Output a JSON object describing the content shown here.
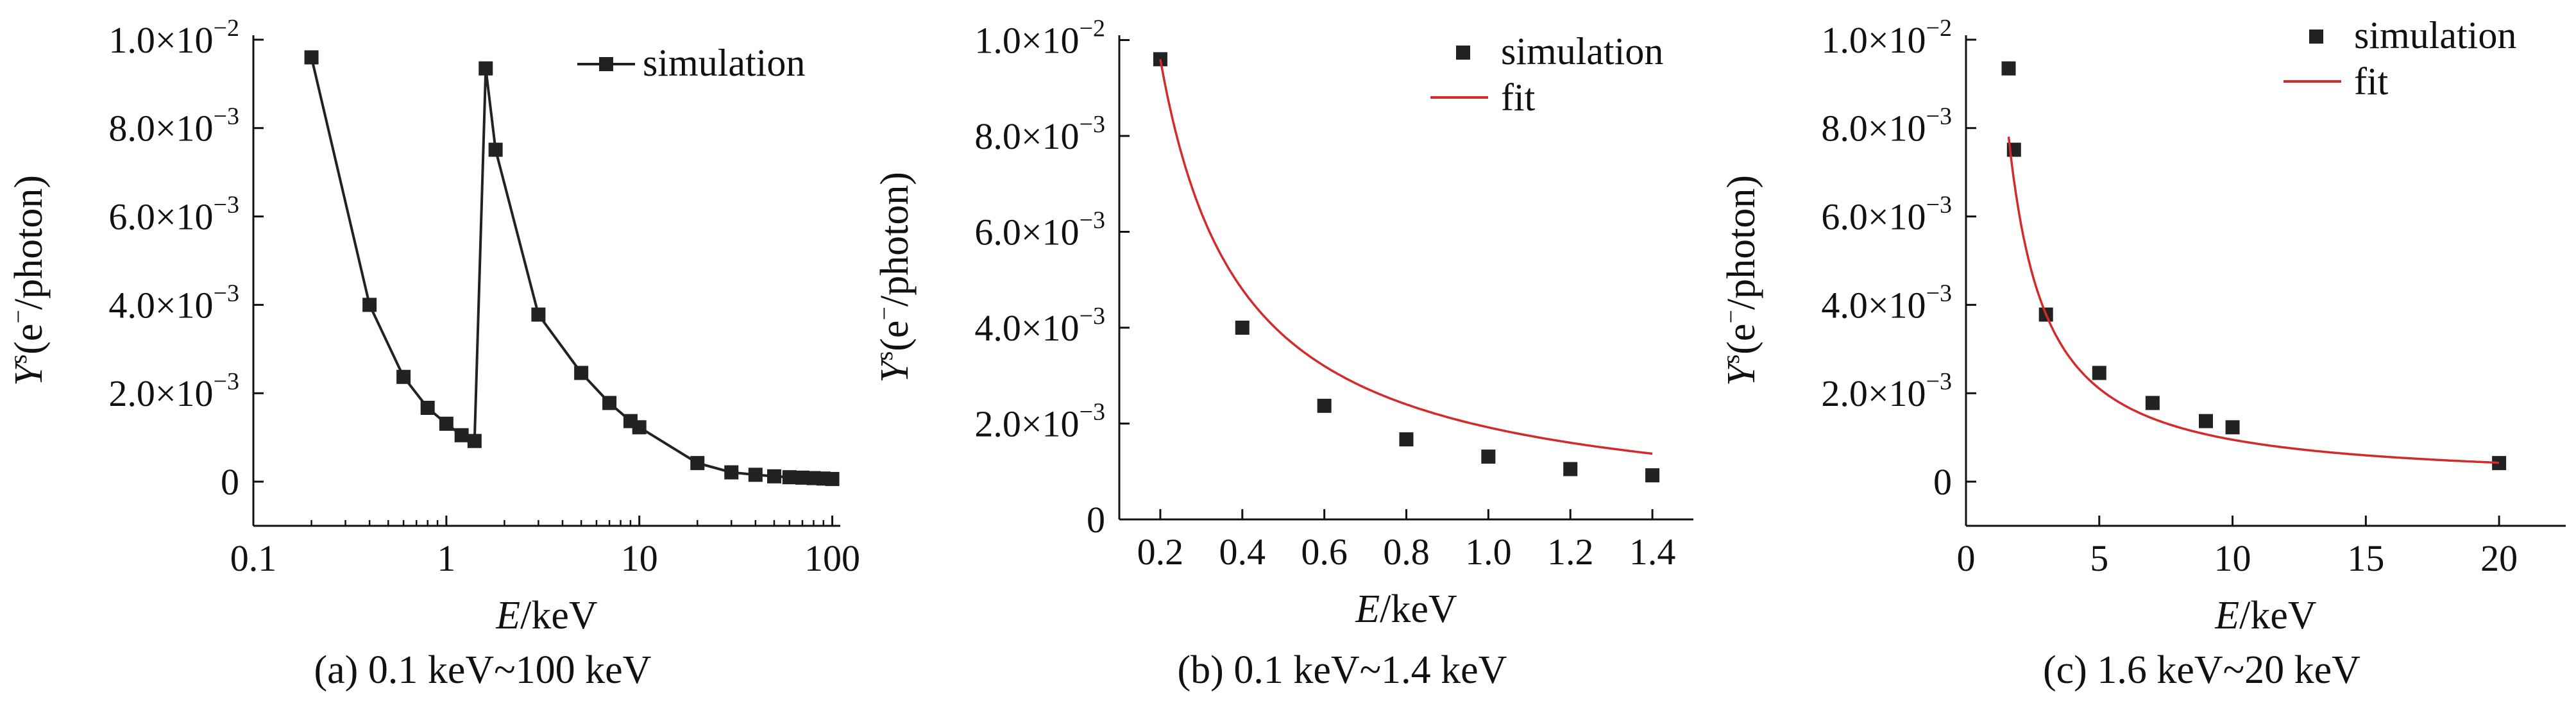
{
  "chart_data": [
    {
      "type": "line",
      "caption": "(a) 0.1 keV~100 keV",
      "xlabel_var": "E",
      "xlabel_unit": "/keV",
      "ylabel_var": "Y",
      "ylabel_sup": "s",
      "ylabel_open": "(e",
      "ylabel_sup2": "−",
      "ylabel_close": "/photon)",
      "xscale": "log",
      "xlim": [
        0.1,
        110
      ],
      "ylim": [
        -0.001,
        0.0101
      ],
      "xticks": [
        0.1,
        1,
        10,
        100
      ],
      "xtick_labels": [
        "0.1",
        "1",
        "10",
        "100"
      ],
      "yticks": [
        0,
        0.002,
        0.004,
        0.006,
        0.008,
        0.01
      ],
      "ytick_labels": [
        "0",
        "2.0×10",
        "4.0×10",
        "6.0×10",
        "8.0×10",
        "1.0×10"
      ],
      "ytick_sups": [
        "",
        "−3",
        "−3",
        "−3",
        "−3",
        "−2"
      ],
      "legend_position": "top-right",
      "series": [
        {
          "name": "simulation",
          "style": "line-square",
          "color": "#222222",
          "x": [
            0.2,
            0.4,
            0.6,
            0.8,
            1.0,
            1.2,
            1.4,
            1.6,
            1.8,
            3,
            5,
            7,
            9,
            10,
            20,
            30,
            40,
            50,
            60,
            70,
            80,
            90,
            100
          ],
          "y": [
            0.0096,
            0.004,
            0.00237,
            0.00167,
            0.00131,
            0.00105,
            0.00092,
            0.00935,
            0.00751,
            0.00378,
            0.00246,
            0.00178,
            0.00137,
            0.00123,
            0.00042,
            0.00021,
            0.000155,
            0.00012,
            0.0001,
            9e-05,
            8e-05,
            7e-05,
            6e-05
          ]
        }
      ]
    },
    {
      "type": "scatter",
      "caption": "(b) 0.1 keV~1.4 keV",
      "xlabel_var": "E",
      "xlabel_unit": "/keV",
      "ylabel_var": "Y",
      "ylabel_sup": "s",
      "ylabel_open": "(e",
      "ylabel_sup2": "−",
      "ylabel_close": "/photon)",
      "xscale": "linear",
      "xlim": [
        0.1,
        1.5
      ],
      "ylim": [
        0,
        0.0101
      ],
      "xticks": [
        0.2,
        0.4,
        0.6,
        0.8,
        1.0,
        1.2,
        1.4
      ],
      "xtick_labels": [
        "0.2",
        "0.4",
        "0.6",
        "0.8",
        "1.0",
        "1.2",
        "1.4"
      ],
      "yticks": [
        0,
        0.002,
        0.004,
        0.006,
        0.008,
        0.01
      ],
      "ytick_labels": [
        "0",
        "2.0×10",
        "4.0×10",
        "6.0×10",
        "8.0×10",
        "1.0×10"
      ],
      "ytick_sups": [
        "",
        "−3",
        "−3",
        "−3",
        "−3",
        "−2"
      ],
      "legend_position": "top-right",
      "series": [
        {
          "name": "simulation",
          "style": "square",
          "color": "#222222",
          "x": [
            0.2,
            0.4,
            0.6,
            0.8,
            1.0,
            1.2,
            1.4
          ],
          "y": [
            0.0096,
            0.004,
            0.00237,
            0.00167,
            0.00131,
            0.00105,
            0.00092
          ]
        },
        {
          "name": "fit",
          "style": "line",
          "color": "#d42a2a",
          "fit_power": {
            "a": 0.00192,
            "b": 1.0
          },
          "fit_range": [
            0.2,
            1.4
          ]
        }
      ]
    },
    {
      "type": "scatter",
      "caption": "(c) 1.6 keV~20 keV",
      "xlabel_var": "E",
      "xlabel_unit": "/keV",
      "ylabel_var": "Y",
      "ylabel_sup": "s",
      "ylabel_open": "(e",
      "ylabel_sup2": "−",
      "ylabel_close": "/photon)",
      "xscale": "linear",
      "xlim": [
        0,
        22.5
      ],
      "ylim": [
        -0.001,
        0.0101
      ],
      "xticks": [
        0,
        5,
        10,
        15,
        20
      ],
      "xtick_labels": [
        "0",
        "5",
        "10",
        "15",
        "20"
      ],
      "yticks": [
        0,
        0.002,
        0.004,
        0.006,
        0.008,
        0.01
      ],
      "ytick_labels": [
        "0",
        "2.0×10",
        "4.0×10",
        "6.0×10",
        "8.0×10",
        "1.0×10"
      ],
      "ytick_sups": [
        "",
        "−3",
        "−3",
        "−3",
        "−3",
        "−2"
      ],
      "legend_position": "top-right",
      "series": [
        {
          "name": "simulation",
          "style": "square",
          "color": "#222222",
          "x": [
            1.6,
            1.8,
            3,
            5,
            7,
            9,
            10,
            20
          ],
          "y": [
            0.00935,
            0.00751,
            0.00378,
            0.00246,
            0.00178,
            0.00137,
            0.00123,
            0.00042
          ]
        },
        {
          "name": "fit",
          "style": "line",
          "color": "#d42a2a",
          "fit_power": {
            "a": 0.0134,
            "b": 1.15
          },
          "fit_range": [
            1.6,
            20
          ]
        }
      ]
    }
  ]
}
